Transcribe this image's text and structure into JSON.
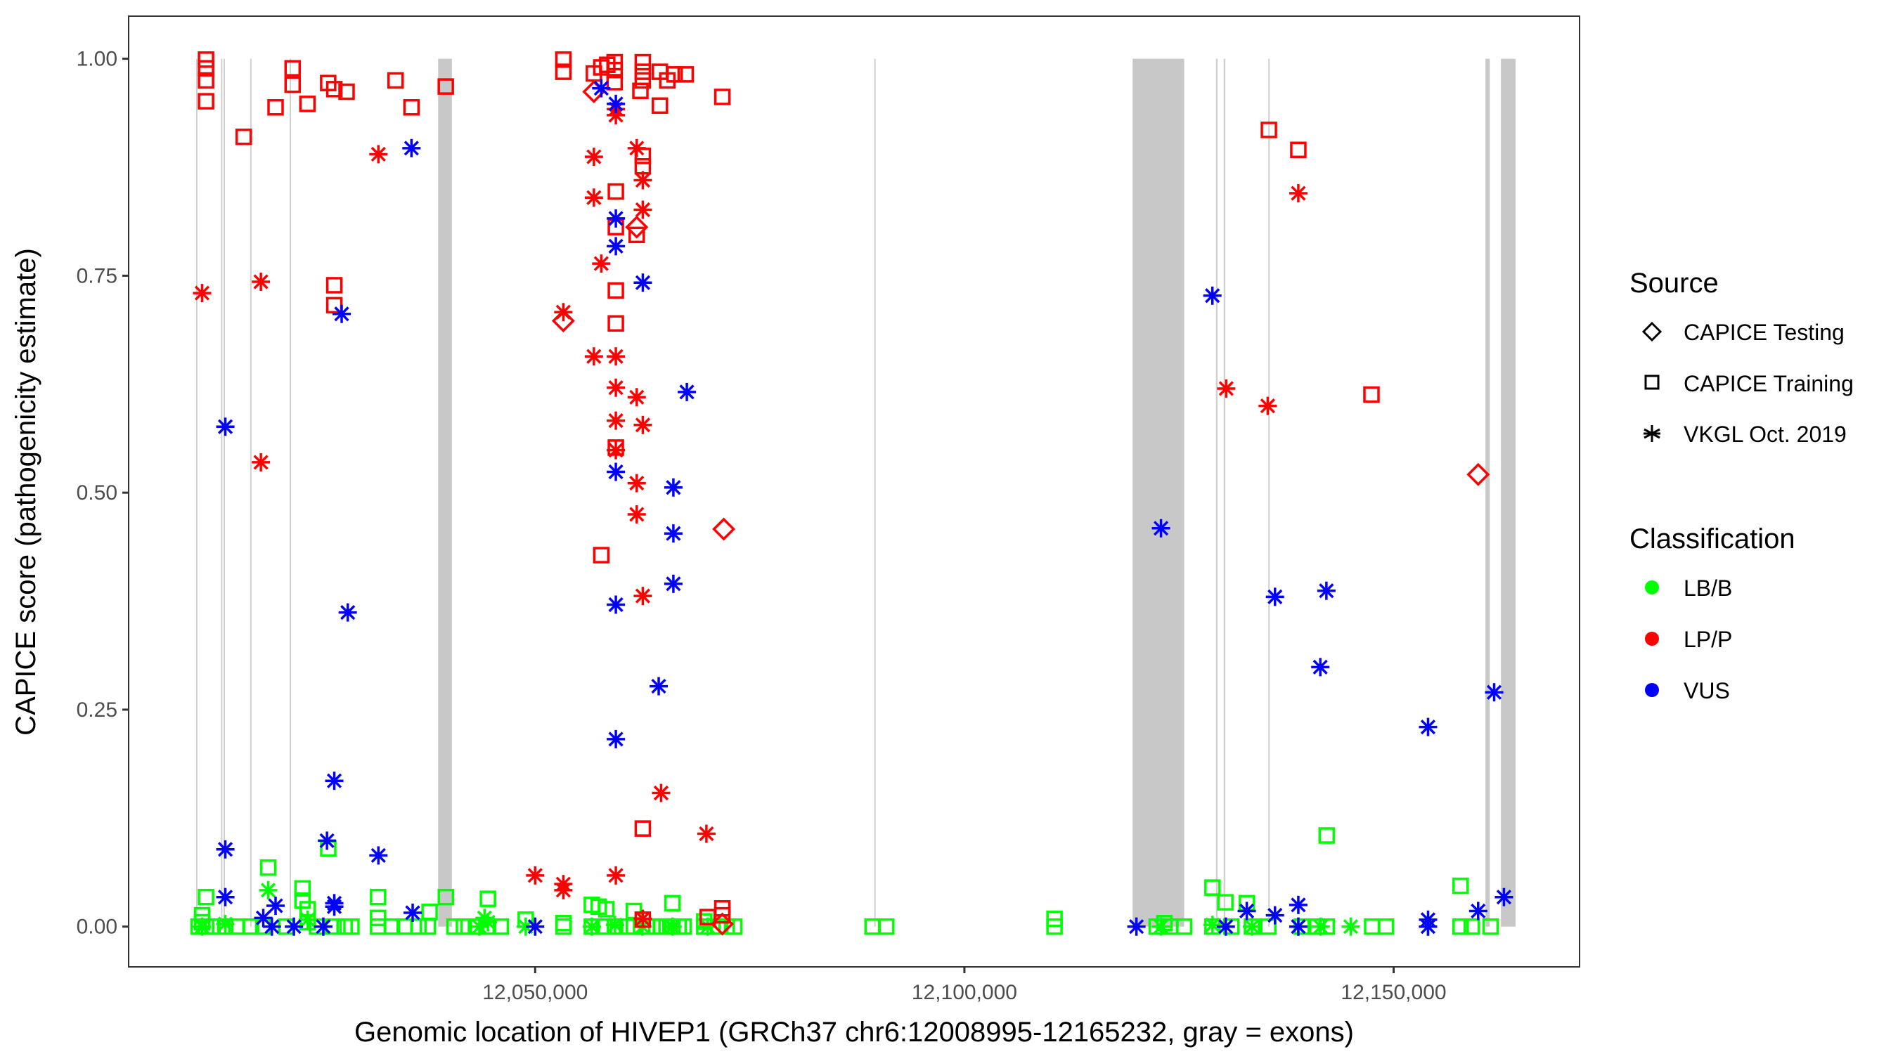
{
  "chart_data": {
    "type": "scatter",
    "title": "",
    "xlabel": "Genomic location of HIVEP1 (GRCh37 chr6:12008995-12165232, gray = exons)",
    "ylabel": "CAPICE score (pathogenicity estimate)",
    "xlim": [
      12003500,
      12172300
    ],
    "ylim": [
      -0.045,
      1.045
    ],
    "grid": false,
    "x_ticks": [
      {
        "value": 12050000,
        "label": "12,050,000"
      },
      {
        "value": 12100000,
        "label": "12,100,000"
      },
      {
        "value": 12150000,
        "label": "12,150,000"
      }
    ],
    "y_ticks": [
      {
        "value": 0.0,
        "label": "0.00"
      },
      {
        "value": 0.25,
        "label": "0.25"
      },
      {
        "value": 0.5,
        "label": "0.50"
      },
      {
        "value": 0.75,
        "label": "0.75"
      },
      {
        "value": 1.0,
        "label": "1.00"
      }
    ],
    "exons": [
      [
        12010500,
        12010600
      ],
      [
        12013400,
        12013500
      ],
      [
        12013700,
        12013800
      ],
      [
        12016800,
        12016900
      ],
      [
        12021400,
        12021500
      ],
      [
        12038700,
        12040300
      ],
      [
        12089500,
        12089600
      ],
      [
        12119600,
        12125600
      ],
      [
        12129300,
        12129500
      ],
      [
        12130200,
        12130400
      ],
      [
        12135400,
        12135500
      ],
      [
        12160700,
        12161200
      ],
      [
        12162500,
        12164200
      ]
    ],
    "legend": {
      "position": "right",
      "source_title": "Source",
      "source_entries": [
        {
          "key": "testing",
          "label": "CAPICE Testing",
          "shape": "diamond"
        },
        {
          "key": "training",
          "label": "CAPICE Training",
          "shape": "square"
        },
        {
          "key": "vkgl",
          "label": "VKGL Oct. 2019",
          "shape": "asterisk"
        }
      ],
      "class_title": "Classification",
      "class_entries": [
        {
          "key": "LB/B",
          "label": "LB/B",
          "color": "#00ff00"
        },
        {
          "key": "LP/P",
          "label": "LP/P",
          "color": "#ff0000"
        },
        {
          "key": "VUS",
          "label": "VUS",
          "color": "#0000ff"
        }
      ]
    },
    "colors": {
      "LB/B": "#00ff00",
      "LP/P": "#ff0000",
      "VUS": "#0000ff",
      "exon": "#c8c8c8",
      "exon_line": "#d0d0d0"
    },
    "series": [
      {
        "name": "LP/P - CAPICE Training",
        "class": "LP/P",
        "source": "training",
        "points": [
          [
            12011660,
            0.999
          ],
          [
            12011660,
            0.989
          ],
          [
            12011660,
            0.975
          ],
          [
            12011660,
            0.951
          ],
          [
            12016050,
            0.91
          ],
          [
            12019760,
            0.944
          ],
          [
            12021750,
            0.989
          ],
          [
            12021750,
            0.97
          ],
          [
            12023470,
            0.948
          ],
          [
            12025890,
            0.972
          ],
          [
            12026600,
            0.965
          ],
          [
            12028030,
            0.962
          ],
          [
            12033740,
            0.975
          ],
          [
            12035590,
            0.944
          ],
          [
            12039590,
            0.968
          ],
          [
            12026600,
            0.739
          ],
          [
            12026600,
            0.716
          ],
          [
            12053280,
            0.999
          ],
          [
            12053280,
            0.985
          ],
          [
            12056840,
            0.983
          ],
          [
            12057700,
            0.99
          ],
          [
            12058400,
            0.993
          ],
          [
            12059260,
            0.996
          ],
          [
            12059260,
            0.987
          ],
          [
            12059260,
            0.973
          ],
          [
            12062540,
            0.996
          ],
          [
            12062540,
            0.985
          ],
          [
            12062540,
            0.975
          ],
          [
            12062260,
            0.963
          ],
          [
            12064530,
            0.985
          ],
          [
            12065390,
            0.975
          ],
          [
            12066240,
            0.982
          ],
          [
            12067530,
            0.982
          ],
          [
            12064530,
            0.946
          ],
          [
            12071800,
            0.956
          ],
          [
            12059400,
            0.847
          ],
          [
            12062540,
            0.888
          ],
          [
            12062540,
            0.876
          ],
          [
            12059400,
            0.806
          ],
          [
            12061830,
            0.797
          ],
          [
            12059400,
            0.733
          ],
          [
            12059400,
            0.695
          ],
          [
            12059400,
            0.552
          ],
          [
            12057700,
            0.428
          ],
          [
            12062540,
            0.113
          ],
          [
            12071800,
            0.021
          ],
          [
            12071800,
            0.013
          ],
          [
            12070100,
            0.011
          ],
          [
            12062540,
            0.008
          ],
          [
            12135470,
            0.918
          ],
          [
            12138900,
            0.895
          ],
          [
            12147420,
            0.613
          ]
        ]
      },
      {
        "name": "LP/P - CAPICE Testing",
        "class": "LP/P",
        "source": "testing",
        "points": [
          [
            12056840,
            0.962
          ],
          [
            12061830,
            0.806
          ],
          [
            12053280,
            0.698
          ],
          [
            12071970,
            0.458
          ],
          [
            12159850,
            0.521
          ],
          [
            12071800,
            0.003
          ]
        ]
      },
      {
        "name": "LP/P - VKGL Oct. 2019",
        "class": "LP/P",
        "source": "vkgl",
        "points": [
          [
            12011200,
            0.73
          ],
          [
            12018050,
            0.743
          ],
          [
            12018050,
            0.535
          ],
          [
            12031740,
            0.89
          ],
          [
            12059400,
            0.942
          ],
          [
            12059400,
            0.935
          ],
          [
            12061830,
            0.897
          ],
          [
            12062540,
            0.86
          ],
          [
            12062540,
            0.826
          ],
          [
            12056840,
            0.887
          ],
          [
            12056840,
            0.84
          ],
          [
            12057700,
            0.764
          ],
          [
            12053280,
            0.708
          ],
          [
            12056840,
            0.657
          ],
          [
            12059400,
            0.657
          ],
          [
            12059400,
            0.621
          ],
          [
            12061830,
            0.61
          ],
          [
            12059400,
            0.583
          ],
          [
            12059400,
            0.549
          ],
          [
            12062540,
            0.578
          ],
          [
            12061830,
            0.511
          ],
          [
            12061830,
            0.475
          ],
          [
            12062540,
            0.381
          ],
          [
            12064670,
            0.154
          ],
          [
            12069950,
            0.107
          ],
          [
            12050000,
            0.059
          ],
          [
            12053280,
            0.049
          ],
          [
            12053280,
            0.042
          ],
          [
            12059400,
            0.059
          ],
          [
            12062540,
            0.009
          ],
          [
            12138900,
            0.845
          ],
          [
            12130500,
            0.62
          ],
          [
            12135330,
            0.6
          ]
        ]
      },
      {
        "name": "VUS - VKGL Oct. 2019",
        "class": "VUS",
        "source": "vkgl",
        "points": [
          [
            12035590,
            0.897
          ],
          [
            12013910,
            0.576
          ],
          [
            12027460,
            0.706
          ],
          [
            12028170,
            0.362
          ],
          [
            12026600,
            0.168
          ],
          [
            12025750,
            0.099
          ],
          [
            12013910,
            0.089
          ],
          [
            12031740,
            0.082
          ],
          [
            12013910,
            0.034
          ],
          [
            12026600,
            0.027
          ],
          [
            12026600,
            0.023
          ],
          [
            12035730,
            0.016
          ],
          [
            12018330,
            0.01
          ],
          [
            12019760,
            0.024
          ],
          [
            12019330,
            0.0
          ],
          [
            12021900,
            0.0
          ],
          [
            12025320,
            0.0
          ],
          [
            12050000,
            0.0
          ],
          [
            12057700,
            0.966
          ],
          [
            12059400,
            0.948
          ],
          [
            12059400,
            0.816
          ],
          [
            12059400,
            0.784
          ],
          [
            12062540,
            0.742
          ],
          [
            12067670,
            0.616
          ],
          [
            12059400,
            0.524
          ],
          [
            12066100,
            0.506
          ],
          [
            12066100,
            0.453
          ],
          [
            12066100,
            0.395
          ],
          [
            12059400,
            0.371
          ],
          [
            12064390,
            0.277
          ],
          [
            12059400,
            0.216
          ],
          [
            12128890,
            0.727
          ],
          [
            12122900,
            0.459
          ],
          [
            12136180,
            0.38
          ],
          [
            12142170,
            0.387
          ],
          [
            12141460,
            0.299
          ],
          [
            12154010,
            0.23
          ],
          [
            12161710,
            0.27
          ],
          [
            12162850,
            0.034
          ],
          [
            12159850,
            0.018
          ],
          [
            12154010,
            0.008
          ],
          [
            12132890,
            0.018
          ],
          [
            12136180,
            0.013
          ],
          [
            12138900,
            0.025
          ],
          [
            12120040,
            0.0
          ],
          [
            12130450,
            0.0
          ],
          [
            12138900,
            0.0
          ],
          [
            12154010,
            0.0
          ]
        ]
      },
      {
        "name": "LB/B - CAPICE Training",
        "class": "LB/B",
        "source": "training",
        "points": [
          [
            12011660,
            0.034
          ],
          [
            12011200,
            0.013
          ],
          [
            12011200,
            0.005
          ],
          [
            12011660,
            0.0
          ],
          [
            12010800,
            0.0
          ],
          [
            12012400,
            0.0
          ],
          [
            12013900,
            0.0
          ],
          [
            12015200,
            0.0
          ],
          [
            12016900,
            0.0
          ],
          [
            12018900,
            0.068
          ],
          [
            12018330,
            0.0
          ],
          [
            12021000,
            0.0
          ],
          [
            12022900,
            0.044
          ],
          [
            12022900,
            0.03
          ],
          [
            12023500,
            0.02
          ],
          [
            12023500,
            0.005
          ],
          [
            12025900,
            0.09
          ],
          [
            12024600,
            0.0
          ],
          [
            12026500,
            0.0
          ],
          [
            12027800,
            0.0
          ],
          [
            12028600,
            0.0
          ],
          [
            12031700,
            0.034
          ],
          [
            12031700,
            0.01
          ],
          [
            12031700,
            0.0
          ],
          [
            12033300,
            0.0
          ],
          [
            12034800,
            0.0
          ],
          [
            12036400,
            0.0
          ],
          [
            12037700,
            0.017
          ],
          [
            12039600,
            0.034
          ],
          [
            12037500,
            0.0
          ],
          [
            12040600,
            0.0
          ],
          [
            12041700,
            0.0
          ],
          [
            12043100,
            0.0
          ],
          [
            12044500,
            0.032
          ],
          [
            12044500,
            0.0
          ],
          [
            12046000,
            0.0
          ],
          [
            12048900,
            0.008
          ],
          [
            12053300,
            0.004
          ],
          [
            12053300,
            0.0
          ],
          [
            12056600,
            0.025
          ],
          [
            12057400,
            0.023
          ],
          [
            12058300,
            0.02
          ],
          [
            12056600,
            0.0
          ],
          [
            12058000,
            0.0
          ],
          [
            12059300,
            0.0
          ],
          [
            12060700,
            0.0
          ],
          [
            12061500,
            0.018
          ],
          [
            12061500,
            0.0
          ],
          [
            12063000,
            0.0
          ],
          [
            12064100,
            0.0
          ],
          [
            12064700,
            0.0
          ],
          [
            12065300,
            0.0
          ],
          [
            12066000,
            0.027
          ],
          [
            12066000,
            0.0
          ],
          [
            12066700,
            0.0
          ],
          [
            12067300,
            0.0
          ],
          [
            12069700,
            0.006
          ],
          [
            12069700,
            0.0
          ],
          [
            12071300,
            0.0
          ],
          [
            12072300,
            0.0
          ],
          [
            12073200,
            0.0
          ],
          [
            12089300,
            0.0
          ],
          [
            12090900,
            0.0
          ],
          [
            12110500,
            0.009
          ],
          [
            12110500,
            0.0
          ],
          [
            12122400,
            0.0
          ],
          [
            12123300,
            0.004
          ],
          [
            12124000,
            0.0
          ],
          [
            12125600,
            0.0
          ],
          [
            12128900,
            0.045
          ],
          [
            12130400,
            0.028
          ],
          [
            12132900,
            0.027
          ],
          [
            12128900,
            0.0
          ],
          [
            12131100,
            0.0
          ],
          [
            12133500,
            0.0
          ],
          [
            12135400,
            0.0
          ],
          [
            12139300,
            0.0
          ],
          [
            12141100,
            0.0
          ],
          [
            12142200,
            0.105
          ],
          [
            12142200,
            0.0
          ],
          [
            12147500,
            0.0
          ],
          [
            12149100,
            0.0
          ],
          [
            12157800,
            0.047
          ],
          [
            12157800,
            0.0
          ],
          [
            12159100,
            0.0
          ],
          [
            12161300,
            0.0
          ]
        ]
      },
      {
        "name": "LB/B - VKGL Oct. 2019",
        "class": "LB/B",
        "source": "vkgl",
        "points": [
          [
            12011200,
            0.0
          ],
          [
            12013900,
            0.003
          ],
          [
            12018900,
            0.042
          ],
          [
            12023500,
            0.008
          ],
          [
            12044100,
            0.01
          ],
          [
            12044500,
            0.005
          ],
          [
            12043500,
            0.0
          ],
          [
            12048900,
            0.0
          ],
          [
            12056600,
            0.0
          ],
          [
            12059300,
            0.002
          ],
          [
            12062500,
            0.0
          ],
          [
            12066000,
            0.0
          ],
          [
            12070100,
            0.0
          ],
          [
            12122900,
            0.0
          ],
          [
            12128900,
            0.002
          ],
          [
            12133500,
            0.0
          ],
          [
            12138900,
            0.0
          ],
          [
            12141500,
            0.0
          ],
          [
            12145000,
            0.0
          ],
          [
            12154000,
            0.0
          ]
        ]
      }
    ]
  }
}
